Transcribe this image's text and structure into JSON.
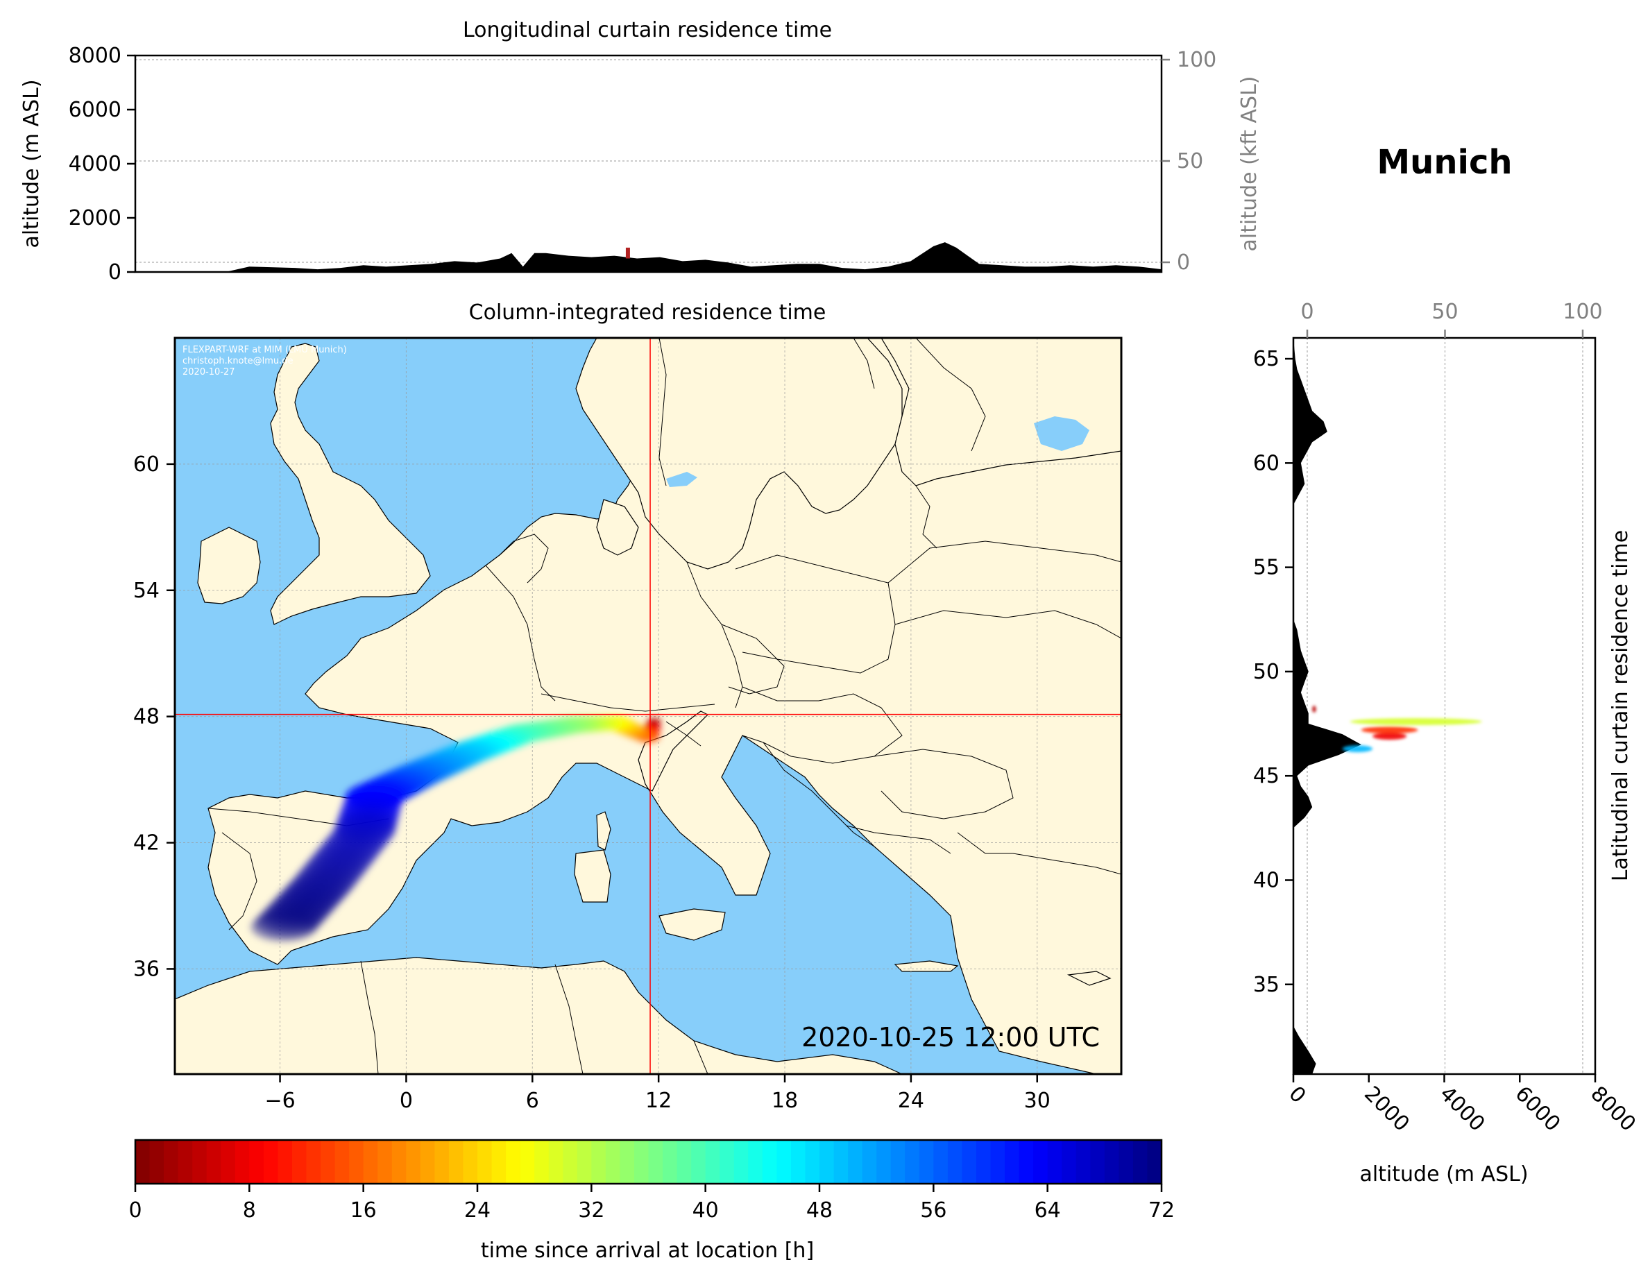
{
  "figure": {
    "location_title": "Munich",
    "timestamp": "2020-10-25 12:00 UTC",
    "credits": [
      "FLEXPART-WRF at MIM (LMU Munich)",
      "christoph.knote@lmu.de",
      "2020-10-27"
    ],
    "colors": {
      "ocean": "#87cefa",
      "land": "#fff8dc",
      "border": "#000000",
      "crosshair": "#ff0000",
      "terrain": "#000000",
      "grid": "#999999"
    }
  },
  "chart_data": [
    {
      "id": "longitudinal",
      "type": "area",
      "title": "Longitudinal curtain residence time",
      "ylabel": "altitude (m ASL)",
      "ylabel_right": "altitude (kft ASL)",
      "xlim": [
        -10,
        35
      ],
      "ylim": [
        0,
        8000
      ],
      "yticks": [
        0,
        2000,
        4000,
        6000,
        8000
      ],
      "yticks_right": [
        0,
        50,
        100
      ],
      "grid": true,
      "terrain": {
        "x": [
          -10,
          -8,
          -6,
          -5,
          -3,
          -2,
          -1,
          0,
          1,
          2,
          3,
          4,
          5,
          6,
          6.5,
          7,
          7.5,
          8,
          9,
          10,
          11,
          12,
          13,
          14,
          15,
          16,
          17,
          18,
          19,
          20,
          21,
          22,
          23,
          24,
          25,
          25.5,
          26,
          27,
          28,
          29,
          30,
          31,
          32,
          33,
          34,
          35
        ],
        "y": [
          0,
          0,
          10,
          200,
          150,
          100,
          150,
          250,
          200,
          250,
          300,
          400,
          350,
          500,
          700,
          200,
          700,
          700,
          600,
          550,
          600,
          500,
          550,
          400,
          450,
          350,
          200,
          250,
          300,
          300,
          150,
          100,
          200,
          400,
          950,
          1100,
          900,
          300,
          250,
          200,
          200,
          250,
          200,
          250,
          200,
          100
        ]
      },
      "plume": {
        "lon": 11.6,
        "alt_range": [
          500,
          900
        ]
      }
    },
    {
      "id": "map",
      "type": "heatmap",
      "title": "Column-integrated residence time",
      "xlim": [
        -11,
        34
      ],
      "ylim": [
        31,
        66
      ],
      "xticks": [
        -6,
        0,
        6,
        12,
        18,
        24,
        30
      ],
      "yticks": [
        36,
        42,
        48,
        54,
        60
      ],
      "receptor": {
        "lon": 11.6,
        "lat": 48.1
      },
      "trajectory": [
        {
          "lon": 11.8,
          "lat": 47.8,
          "age_h": 2
        },
        {
          "lon": 11.5,
          "lat": 47.0,
          "age_h": 14
        },
        {
          "lon": 10.0,
          "lat": 47.7,
          "age_h": 26
        },
        {
          "lon": 8.0,
          "lat": 47.6,
          "age_h": 34
        },
        {
          "lon": 5.5,
          "lat": 47.2,
          "age_h": 40
        },
        {
          "lon": 3.0,
          "lat": 46.3,
          "age_h": 48
        },
        {
          "lon": 0.5,
          "lat": 45.2,
          "age_h": 55
        },
        {
          "lon": -1.5,
          "lat": 44.2,
          "age_h": 62
        },
        {
          "lon": -2.0,
          "lat": 42.5,
          "age_h": 67
        },
        {
          "lon": -4.0,
          "lat": 40.0,
          "age_h": 70
        },
        {
          "lon": -6.0,
          "lat": 37.8,
          "age_h": 72
        }
      ]
    },
    {
      "id": "latitudinal",
      "type": "area",
      "title": "Latitudinal curtain residence time",
      "xlabel": "altitude (m ASL)",
      "xlim": [
        0,
        8000
      ],
      "xticks": [
        0,
        2000,
        4000,
        6000,
        8000
      ],
      "xticks_top": [
        0,
        50,
        100
      ],
      "ylim": [
        30.7,
        66
      ],
      "yticks": [
        35,
        40,
        45,
        50,
        55,
        60,
        65
      ],
      "terrain": {
        "lat": [
          30.7,
          31.2,
          31.8,
          32.5,
          33,
          42.5,
          43,
          43.5,
          44,
          44.5,
          45,
          45.5,
          46,
          46.5,
          47,
          47.5,
          48,
          48.5,
          49,
          49.5,
          50,
          50.5,
          51,
          52,
          52.5,
          58,
          59,
          60,
          61,
          61.5,
          62,
          62.5,
          63,
          63.5,
          64,
          64.5,
          65,
          66
        ],
        "alt": [
          500,
          600,
          400,
          150,
          0,
          0,
          300,
          500,
          400,
          200,
          100,
          400,
          1200,
          1800,
          1300,
          400,
          400,
          300,
          200,
          300,
          400,
          300,
          200,
          100,
          0,
          0,
          300,
          200,
          500,
          900,
          800,
          500,
          400,
          300,
          200,
          100,
          50,
          0
        ]
      },
      "plumes": [
        {
          "lat": 47.6,
          "alt_range": [
            1500,
            5000
          ],
          "age_h": 30
        },
        {
          "lat": 47.2,
          "alt_range": [
            1800,
            3300
          ],
          "age_h": 12
        },
        {
          "lat": 46.9,
          "alt_range": [
            2100,
            3000
          ],
          "age_h": 8
        },
        {
          "lat": 46.3,
          "alt_range": [
            1300,
            2100
          ],
          "age_h": 50
        },
        {
          "lat": 48.2,
          "alt_range": [
            500,
            600
          ],
          "age_h": 4
        }
      ]
    },
    {
      "id": "colorbar",
      "type": "heatmap",
      "label": "time since arrival at location [h]",
      "range": [
        0,
        72
      ],
      "ticks": [
        0,
        8,
        16,
        24,
        32,
        40,
        48,
        56,
        64,
        72
      ],
      "colormap": [
        "#7f0000",
        "#ff0000",
        "#ff8000",
        "#ffff00",
        "#80ff80",
        "#00ffff",
        "#0080ff",
        "#0000ff",
        "#00007f"
      ]
    }
  ]
}
